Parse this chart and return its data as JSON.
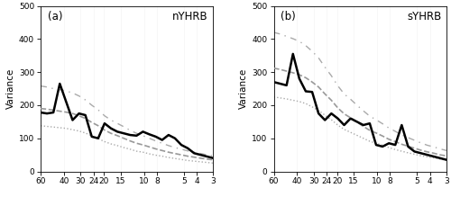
{
  "x_labels": [
    60,
    40,
    30,
    24,
    20,
    15,
    10,
    8,
    5,
    4,
    3
  ],
  "ylim": [
    0,
    500
  ],
  "yticks": [
    0,
    100,
    200,
    300,
    400,
    500
  ],
  "ylabel": "Variance",
  "fig_width": 5.0,
  "fig_height": 2.19,
  "background_color": "#ffffff",
  "panel_a": {
    "label": "(a)",
    "region": "nYHRB",
    "spectrum": [
      178,
      175,
      178,
      265,
      210,
      155,
      175,
      170,
      105,
      100,
      145,
      130,
      120,
      115,
      110,
      108,
      120,
      112,
      105,
      95,
      110,
      100,
      80,
      70,
      55,
      50,
      45,
      40
    ],
    "red_noise": [
      190,
      188,
      185,
      182,
      179,
      175,
      168,
      160,
      148,
      138,
      125,
      115,
      108,
      100,
      92,
      85,
      80,
      74,
      68,
      63,
      58,
      54,
      50,
      46,
      43,
      40,
      37,
      35
    ],
    "upper_95": [
      258,
      255,
      250,
      247,
      243,
      237,
      228,
      216,
      200,
      186,
      168,
      155,
      145,
      135,
      124,
      115,
      108,
      100,
      92,
      85,
      78,
      72,
      67,
      62,
      58,
      54,
      50,
      47
    ],
    "lower_5": [
      138,
      136,
      134,
      132,
      130,
      126,
      122,
      116,
      107,
      99,
      90,
      83,
      78,
      72,
      67,
      61,
      58,
      53,
      49,
      46,
      42,
      39,
      36,
      33,
      31,
      29,
      27,
      25
    ]
  },
  "panel_b": {
    "label": "(b)",
    "region": "sYHRB",
    "spectrum": [
      270,
      265,
      260,
      355,
      280,
      242,
      240,
      175,
      155,
      175,
      160,
      140,
      160,
      150,
      140,
      145,
      80,
      75,
      85,
      80,
      140,
      75,
      60,
      55,
      50,
      45,
      40,
      35
    ],
    "red_noise": [
      312,
      308,
      303,
      298,
      292,
      283,
      270,
      255,
      234,
      215,
      192,
      174,
      162,
      149,
      136,
      124,
      116,
      107,
      97,
      90,
      82,
      76,
      70,
      64,
      59,
      55,
      50,
      47
    ],
    "upper_95": [
      420,
      415,
      408,
      401,
      393,
      380,
      363,
      343,
      315,
      289,
      259,
      234,
      218,
      200,
      183,
      167,
      156,
      144,
      131,
      121,
      110,
      102,
      94,
      86,
      79,
      74,
      68,
      63
    ],
    "lower_5": [
      225,
      222,
      219,
      215,
      211,
      205,
      195,
      184,
      170,
      156,
      140,
      127,
      118,
      109,
      100,
      91,
      85,
      79,
      72,
      66,
      61,
      56,
      52,
      47,
      44,
      41,
      37,
      34
    ]
  },
  "line_color_spectrum": "#000000",
  "line_color_rednoise": "#999999",
  "line_color_upper": "#aaaaaa",
  "line_color_lower": "#aaaaaa",
  "lw_spectrum": 1.8,
  "lw_rednoise": 1.2,
  "lw_bounds": 1.0,
  "grid_color": "#cccccc",
  "grid_alpha": 0.25
}
